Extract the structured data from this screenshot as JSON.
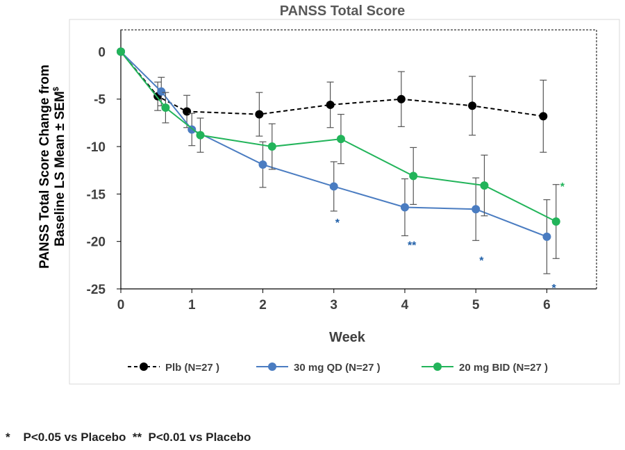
{
  "chart_data": {
    "type": "line",
    "title": "PANSS Total Score",
    "ylabel_line1": "PANSS Total Score  Change from",
    "ylabel_line2": "Baseline  LS Mean ± SEM",
    "ylabel_sup": "$",
    "xlabel": "Week",
    "xlim": [
      0,
      6.7
    ],
    "ylim": [
      -25,
      2.3
    ],
    "yticks": [
      0,
      -5,
      -10,
      -15,
      -20,
      -25
    ],
    "xticks": [
      0,
      1,
      2,
      3,
      4,
      5,
      6
    ],
    "tick_labels_y": [
      "0",
      "-5",
      "-10",
      "-15",
      "-20",
      "-25"
    ],
    "tick_labels_x": [
      "0",
      "1",
      "2",
      "3",
      "4",
      "5",
      "6"
    ],
    "series": [
      {
        "name": "Plb (N=27 )",
        "color": "#000000",
        "dashed": true,
        "x": [
          0,
          0.52,
          0.93,
          1.95,
          2.95,
          3.95,
          4.95,
          5.95
        ],
        "y": [
          0,
          -4.7,
          -6.3,
          -6.6,
          -5.6,
          -5.0,
          -5.7,
          -6.8
        ],
        "err": [
          0,
          1.5,
          1.7,
          2.3,
          2.4,
          2.9,
          3.1,
          3.8
        ]
      },
      {
        "name": "30 mg QD (N=27 )",
        "color": "#4a7cc1",
        "dashed": false,
        "x": [
          0,
          0.57,
          1.0,
          2.0,
          3.0,
          4.0,
          5.0,
          6.0
        ],
        "y": [
          0,
          -4.2,
          -8.2,
          -11.9,
          -14.2,
          -16.4,
          -16.6,
          -19.5
        ],
        "err": [
          0,
          1.5,
          1.7,
          2.4,
          2.6,
          3.0,
          3.3,
          3.9
        ]
      },
      {
        "name": "20 mg BID (N=27 )",
        "color": "#22b45a",
        "dashed": false,
        "x": [
          0,
          0.63,
          1.12,
          2.13,
          3.1,
          4.12,
          5.12,
          6.13
        ],
        "y": [
          0,
          -5.9,
          -8.8,
          -10.0,
          -9.2,
          -13.1,
          -14.1,
          -17.9
        ],
        "err": [
          0,
          1.6,
          1.8,
          2.4,
          2.6,
          3.0,
          3.2,
          3.9
        ]
      }
    ],
    "annotations": [
      {
        "text": "*",
        "x": 3.05,
        "y": -18.4,
        "color": "#1f5fa8"
      },
      {
        "text": "**",
        "x": 4.1,
        "y": -20.8,
        "color": "#1f5fa8"
      },
      {
        "text": "*",
        "x": 5.08,
        "y": -22.4,
        "color": "#1f5fa8"
      },
      {
        "text": "*",
        "x": 6.1,
        "y": -25.3,
        "color": "#1f5fa8"
      },
      {
        "text": "*",
        "x": 6.22,
        "y": -14.6,
        "color": "#22b45a"
      }
    ]
  },
  "footnote": "*    P<0.05 vs Placebo  **  P<0.01 vs Placebo"
}
